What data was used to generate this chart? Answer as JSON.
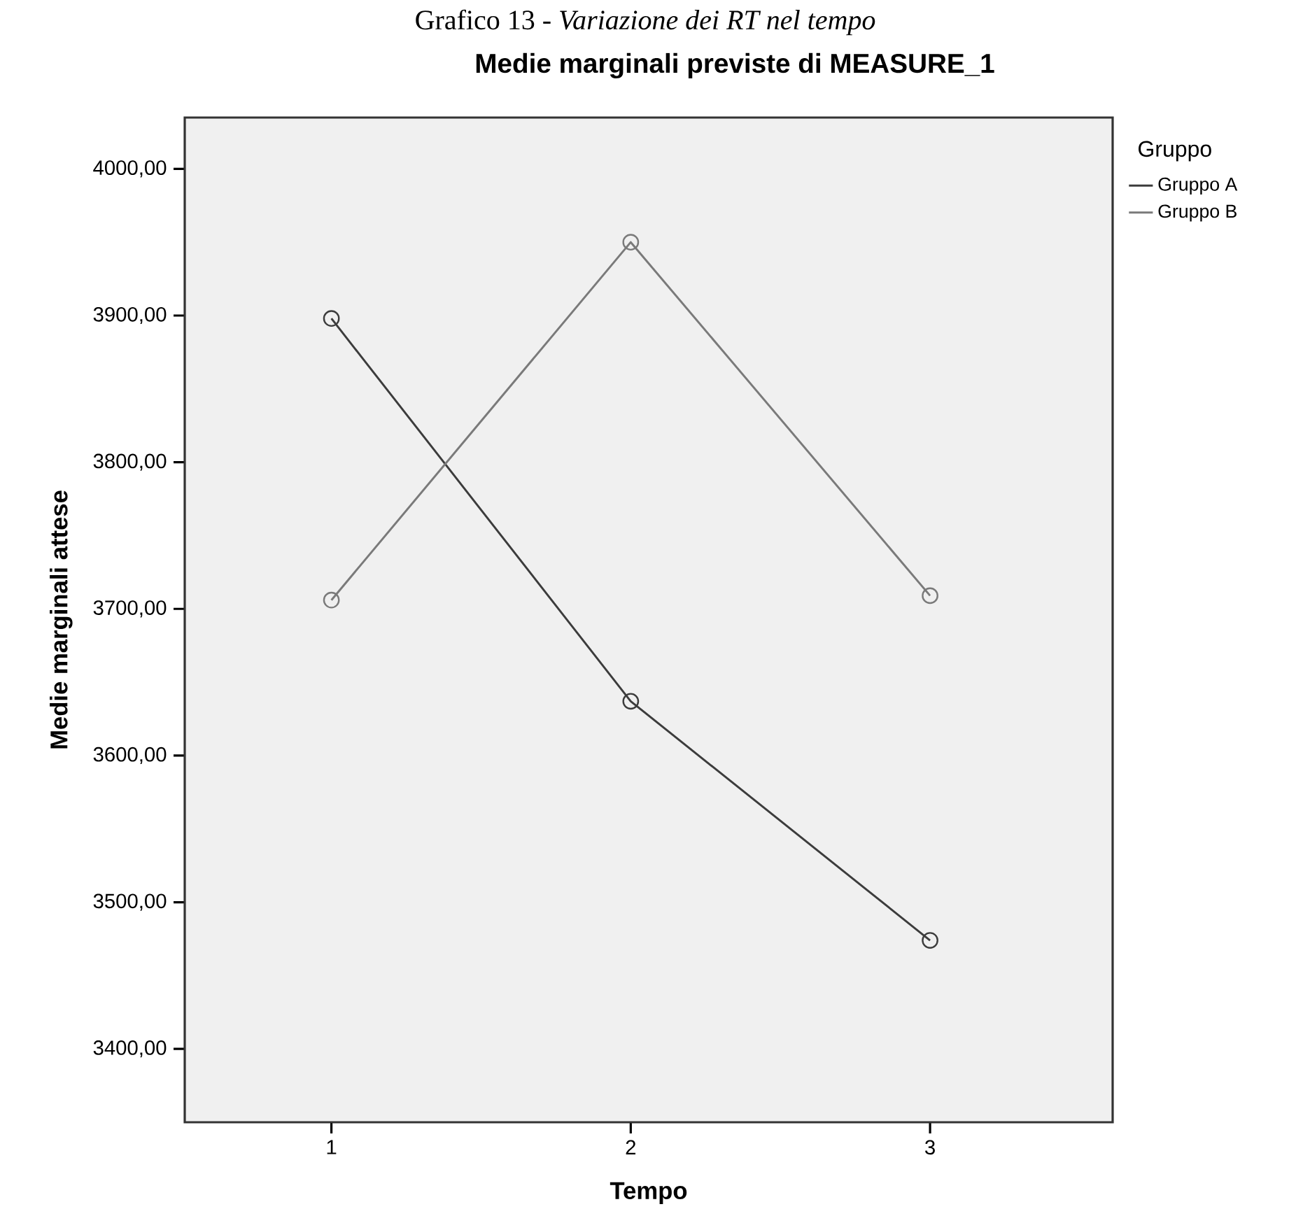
{
  "chart_data": {
    "type": "line",
    "title": "Grafico 13 - *Variazione dei RT nel tempo*",
    "subtitle": "Medie marginali previste di MEASURE_1",
    "xlabel": "Tempo",
    "ylabel": "Medie marginali attese",
    "legend_title": "Gruppo",
    "categories": [
      "1",
      "2",
      "3"
    ],
    "series": [
      {
        "name": "Gruppo A",
        "color": "#3c3c3c",
        "values": [
          3898,
          3637,
          3474
        ]
      },
      {
        "name": "Gruppo B",
        "color": "#7a7a7a",
        "values": [
          3706,
          3950,
          3709
        ]
      }
    ],
    "ylim": [
      3350,
      4035
    ],
    "yticks": [
      {
        "value": 3400,
        "label": "3400,00"
      },
      {
        "value": 3500,
        "label": "3500,00"
      },
      {
        "value": 3600,
        "label": "3600,00"
      },
      {
        "value": 3700,
        "label": "3700,00"
      },
      {
        "value": 3800,
        "label": "3800,00"
      },
      {
        "value": 3900,
        "label": "3900,00"
      },
      {
        "value": 4000,
        "label": "4000,00"
      }
    ],
    "marker": "circle",
    "line_style": "solid",
    "legend": "top right",
    "grid": false
  }
}
